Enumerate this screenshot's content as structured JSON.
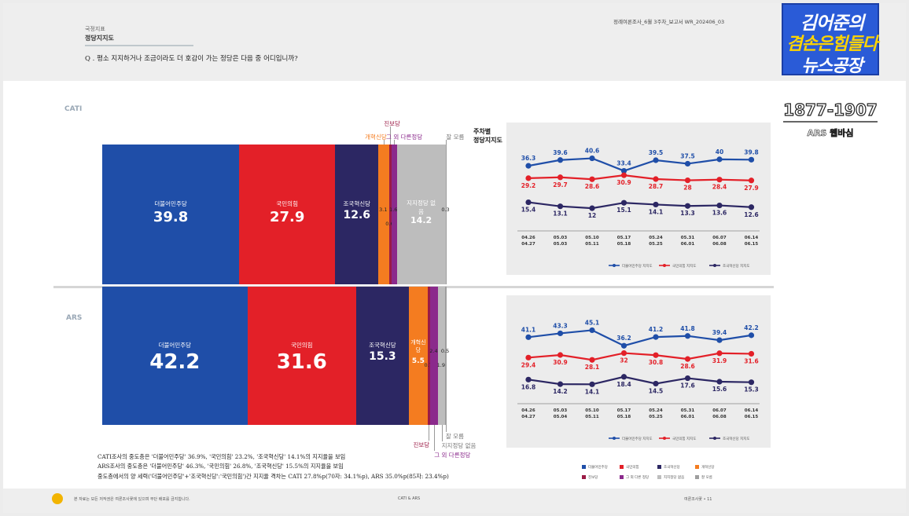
{
  "header": {
    "breadcrumb": "국정지표",
    "title": "정당지지도",
    "question": "Q . 평소 지지하거나 조금이라도 더 호감이 가는 정당은 다음 중 어디입니까?",
    "report_id": "정례여론조사_6월 3주차_보고서    WR_202406_03"
  },
  "logo": {
    "line1": "김어준의",
    "line2": "겸손은힘들다",
    "line3": "뉴스공장",
    "years": "1877-1907",
    "sub": "ARS 웹바심"
  },
  "sections": {
    "cati": "CATI",
    "ars": "ARS"
  },
  "weekly_title_1": "주차별",
  "weekly_title_2": "정당지지도",
  "colors": {
    "minjoo": "#1f4ea8",
    "ppp": "#e32028",
    "rebuild": "#2c2763",
    "reform": "#f47c20",
    "progressive": "#9b1b46",
    "other": "#8b2a8c",
    "none": "#bdbdbd",
    "unknown": "#9e9e9e"
  },
  "chart_data": [
    {
      "type": "bar",
      "subtype": "stacked-100",
      "title": "CATI",
      "categories": [
        "더불어민주당",
        "국민의힘",
        "조국혁신당",
        "개혁신당",
        "진보당",
        "그 외 다른정당",
        "지지정당 없음",
        "잘 모름"
      ],
      "values": [
        39.8,
        27.9,
        12.6,
        3.1,
        0.6,
        1.6,
        14.2,
        0.3
      ],
      "callouts": [
        "진보당",
        "개혁신당",
        "그 외 다른정당",
        "잘 모름"
      ]
    },
    {
      "type": "bar",
      "subtype": "stacked-100",
      "title": "ARS",
      "categories": [
        "더불어민주당",
        "국민의힘",
        "조국혁신당",
        "개혁신당",
        "진보당",
        "그 외 다른정당",
        "지지정당 없음",
        "잘 모름"
      ],
      "values": [
        42.2,
        31.6,
        15.3,
        5.5,
        0.7,
        2.4,
        1.9,
        0.5
      ],
      "callouts": [
        "잘 모름",
        "지지정당 없음",
        "진보당",
        "그 외 다른정당"
      ]
    },
    {
      "type": "line",
      "title": "CATI 주차별 정당지지도",
      "x": [
        [
          "04.26",
          "04.27"
        ],
        [
          "05.03",
          "05.03"
        ],
        [
          "05.10",
          "05.11"
        ],
        [
          "05.17",
          "05.18"
        ],
        [
          "05.24",
          "05.25"
        ],
        [
          "05.31",
          "06.01"
        ],
        [
          "06.07",
          "06.08"
        ],
        [
          "06.14",
          "06.15"
        ]
      ],
      "series": [
        {
          "name": "더불어민주당 지지도",
          "values": [
            36.3,
            39.6,
            40.6,
            33.4,
            39.5,
            37.5,
            40.0,
            39.8
          ]
        },
        {
          "name": "국민의힘 지지도",
          "values": [
            29.2,
            29.7,
            28.6,
            30.9,
            28.7,
            28.0,
            28.4,
            27.9
          ]
        },
        {
          "name": "조국혁신당 지지도",
          "values": [
            15.4,
            13.1,
            12.0,
            15.1,
            14.1,
            13.3,
            13.6,
            12.6
          ]
        }
      ]
    },
    {
      "type": "line",
      "title": "ARS 주차별 정당지지도",
      "x": [
        [
          "04.26",
          "04.27"
        ],
        [
          "05.03",
          "05.04"
        ],
        [
          "05.10",
          "05.11"
        ],
        [
          "05.17",
          "05.18"
        ],
        [
          "05.24",
          "05.25"
        ],
        [
          "05.31",
          "06.01"
        ],
        [
          "06.07",
          "06.08"
        ],
        [
          "06.14",
          "06.15"
        ]
      ],
      "series": [
        {
          "name": "더불어민주당 지지도",
          "values": [
            41.1,
            43.3,
            45.1,
            36.2,
            41.2,
            41.8,
            39.4,
            42.2
          ]
        },
        {
          "name": "국민의힘 지지도",
          "values": [
            29.4,
            30.9,
            28.1,
            32.0,
            30.8,
            28.6,
            31.9,
            31.6
          ]
        },
        {
          "name": "조국혁신당 지지도",
          "values": [
            16.8,
            14.2,
            14.1,
            18.4,
            14.5,
            17.6,
            15.6,
            15.3
          ]
        }
      ]
    }
  ],
  "legend": [
    "더불어민주당",
    "국민의힘",
    "조국혁신당",
    "개혁신당",
    "진보당",
    "그 외 다른 정당",
    "지지정당 없음",
    "잘 모름"
  ],
  "notes": [
    "CATI조사의 중도층은 '더불어민주당' 36.9%, '국민의힘' 23.2%, '조국혁신당' 14.1%의 지지율을 보임",
    "ARS조사의 중도층은 '더불어민주당' 46.3%, '국민의힘' 26.8%, '조국혁신당' 15.5%의 지지율을 보임",
    "중도층에서의 양 세력('더불어민주당'+'조국혁신당':'국민의힘')간 지지율 격차는 CATI 27.8%p(70자: 34.1%p), ARS 35.0%p(85자: 23.4%p)"
  ],
  "footer": {
    "left": "본 자료는 모든 저작권은 여론조사꽃에 있으며 무단 배포를 금지합니다.",
    "center": "CATI & ARS",
    "right": "여론조사꽃  •  11"
  }
}
